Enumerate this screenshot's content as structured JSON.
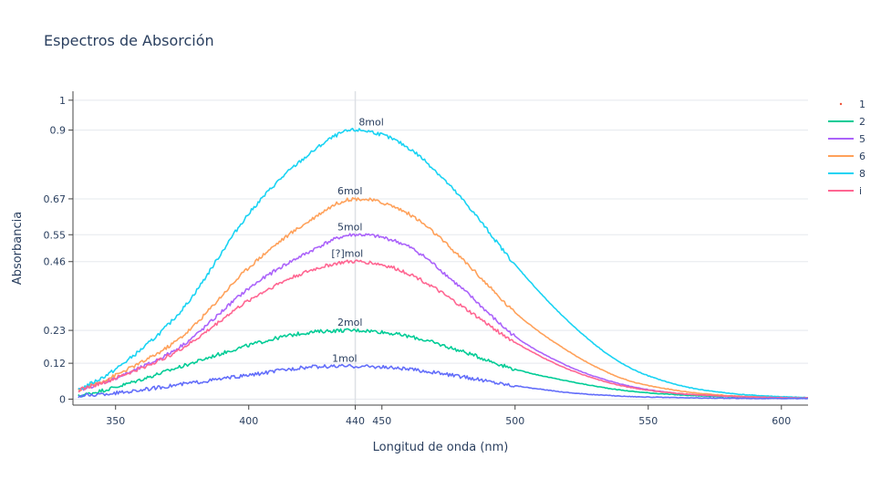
{
  "chart_data": {
    "type": "line",
    "title": "Espectros de Absorción",
    "xlabel": "Longitud de onda (nm)",
    "ylabel": "Absorbancia",
    "xlim": [
      334,
      610
    ],
    "ylim": [
      -0.02,
      1.03
    ],
    "xticks": [
      350,
      400,
      440,
      450,
      500,
      550,
      600
    ],
    "yticks": [
      0,
      0.12,
      0.23,
      0.46,
      0.55,
      0.67,
      0.9,
      1
    ],
    "ytick_labels": [
      "0",
      "0.12",
      "0.23",
      "0.46",
      "0.55",
      "0.67",
      "0.9",
      "1"
    ],
    "vline_x": 440,
    "grid": true,
    "legend_position": "top-right",
    "series": [
      {
        "name": "1",
        "color": "#EF553B",
        "mode": "markers",
        "x": [],
        "y": []
      },
      {
        "name": "2",
        "color": "#00CC96",
        "mode": "lines",
        "x": [
          336,
          350,
          375,
          400,
          420,
          440,
          460,
          480,
          500,
          520,
          540,
          560,
          580,
          600,
          610
        ],
        "y": [
          0.01,
          0.04,
          0.11,
          0.18,
          0.22,
          0.23,
          0.21,
          0.16,
          0.1,
          0.06,
          0.03,
          0.015,
          0.008,
          0.005,
          0.004
        ]
      },
      {
        "name": "5",
        "color": "#AB63FA",
        "mode": "lines",
        "x": [
          336,
          350,
          375,
          400,
          420,
          440,
          460,
          480,
          500,
          520,
          540,
          560,
          580,
          600,
          610
        ],
        "y": [
          0.03,
          0.07,
          0.18,
          0.37,
          0.48,
          0.55,
          0.51,
          0.37,
          0.21,
          0.11,
          0.05,
          0.02,
          0.01,
          0.005,
          0.004
        ]
      },
      {
        "name": "6",
        "color": "#FFA15A",
        "mode": "lines",
        "x": [
          336,
          350,
          375,
          400,
          420,
          440,
          460,
          480,
          500,
          520,
          540,
          560,
          580,
          600,
          610
        ],
        "y": [
          0.03,
          0.08,
          0.21,
          0.44,
          0.58,
          0.67,
          0.62,
          0.47,
          0.29,
          0.16,
          0.07,
          0.03,
          0.012,
          0.006,
          0.005
        ]
      },
      {
        "name": "8",
        "color": "#19D3F3",
        "mode": "lines",
        "x": [
          336,
          350,
          375,
          400,
          420,
          440,
          460,
          480,
          500,
          520,
          540,
          560,
          580,
          600,
          610
        ],
        "y": [
          0.03,
          0.1,
          0.3,
          0.62,
          0.8,
          0.9,
          0.84,
          0.67,
          0.45,
          0.26,
          0.12,
          0.05,
          0.02,
          0.008,
          0.005
        ]
      },
      {
        "name": "i",
        "color": "#FF6692",
        "mode": "lines",
        "x": [
          336,
          350,
          375,
          400,
          420,
          440,
          460,
          480,
          500,
          520,
          540,
          560,
          580,
          600,
          610
        ],
        "y": [
          0.03,
          0.07,
          0.17,
          0.33,
          0.42,
          0.46,
          0.42,
          0.31,
          0.19,
          0.1,
          0.045,
          0.02,
          0.01,
          0.005,
          0.004
        ]
      },
      {
        "name": "",
        "color": "#636EFA",
        "mode": "lines",
        "in_legend": false,
        "x": [
          336,
          350,
          375,
          400,
          420,
          440,
          460,
          480,
          500,
          520,
          540,
          560,
          580,
          600,
          610
        ],
        "y": [
          0.01,
          0.02,
          0.05,
          0.08,
          0.105,
          0.11,
          0.1,
          0.075,
          0.045,
          0.022,
          0.01,
          0.005,
          0.003,
          0.002,
          0.002
        ]
      }
    ],
    "annotations": [
      {
        "text": "8mol",
        "x": 446,
        "y": 0.9
      },
      {
        "text": "6mol",
        "x": 438,
        "y": 0.67
      },
      {
        "text": "5mol",
        "x": 438,
        "y": 0.55
      },
      {
        "text": "[?]mol",
        "x": 437,
        "y": 0.46
      },
      {
        "text": "2mol",
        "x": 438,
        "y": 0.23
      },
      {
        "text": "1mol",
        "x": 436,
        "y": 0.11
      }
    ]
  }
}
